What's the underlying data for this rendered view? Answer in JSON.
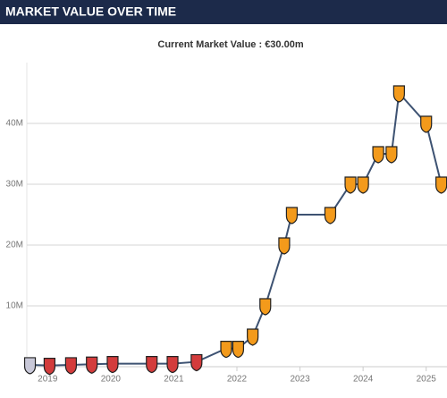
{
  "chart_data": {
    "type": "line",
    "title": "MARKET VALUE OVER TIME",
    "subtitle": "Current Market Value : €30.00m",
    "x": [
      2018.72,
      2019.03,
      2019.37,
      2019.7,
      2020.03,
      2020.65,
      2020.98,
      2021.36,
      2021.83,
      2022.02,
      2022.25,
      2022.45,
      2022.75,
      2022.87,
      2023.48,
      2023.8,
      2024.0,
      2024.24,
      2024.45,
      2024.57,
      2025.0,
      2025.24
    ],
    "values": [
      0.3,
      0.2,
      0.3,
      0.4,
      0.5,
      0.5,
      0.5,
      0.8,
      3,
      3,
      5,
      10,
      20,
      25,
      25,
      30,
      30,
      35,
      35,
      45,
      40,
      30
    ],
    "color": "#3d5272",
    "marker_colors": [
      "#c8c8d8",
      "#d33c3c",
      "#d33c3c",
      "#d33c3c",
      "#d33c3c",
      "#d33c3c",
      "#d33c3c",
      "#d33c3c",
      "#f39a1b",
      "#f39a1b",
      "#f39a1b",
      "#f39a1b",
      "#f39a1b",
      "#f39a1b",
      "#f39a1b",
      "#f39a1b",
      "#f39a1b",
      "#f39a1b",
      "#f39a1b",
      "#f39a1b",
      "#f39a1b",
      "#f39a1b"
    ],
    "xlim": [
      2018.67,
      2025.33
    ],
    "xticks": [
      2019,
      2020,
      2021,
      2022,
      2023,
      2024,
      2025
    ],
    "ylim": [
      0,
      50
    ],
    "yticks": [
      {
        "value": 10,
        "label": "10M"
      },
      {
        "value": 20,
        "label": "20M"
      },
      {
        "value": 30,
        "label": "30M"
      },
      {
        "value": 40,
        "label": "40M"
      }
    ],
    "grid": true
  }
}
